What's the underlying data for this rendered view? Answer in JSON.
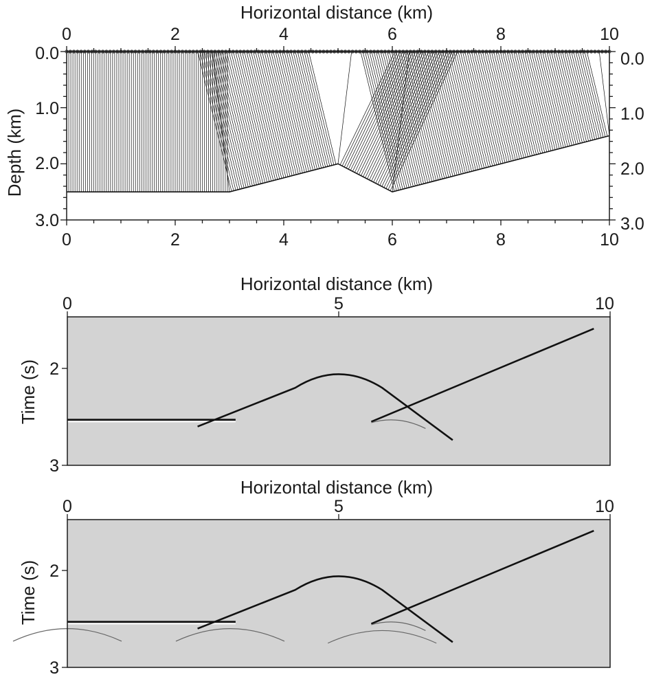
{
  "panels": {
    "depth_model": {
      "x_axis_title": "Horizontal distance (km)",
      "y_axis_title": "Depth (km)",
      "x_ticks": [
        "0",
        "2",
        "4",
        "6",
        "8",
        "10"
      ],
      "y_ticks_left": [
        "0.0",
        "1.0",
        "2.0",
        "3.0"
      ],
      "y_ticks_right": [
        "0.0",
        "1.0",
        "2.0",
        "3.0"
      ]
    },
    "zero_offset_section": {
      "x_axis_title": "Horizontal distance (km)",
      "y_axis_title": "Time (s)",
      "x_ticks": [
        "0",
        "5",
        "10"
      ],
      "y_ticks": [
        "2",
        "3"
      ]
    },
    "modeled_section": {
      "x_axis_title": "Horizontal distance (km)",
      "y_axis_title": "Time (s)",
      "x_ticks": [
        "0",
        "5",
        "10"
      ],
      "y_ticks": [
        "2",
        "3"
      ]
    }
  },
  "colors": {
    "background_section": "#d3d3d3",
    "ink": "#111111"
  },
  "reflector_depth_km": {
    "x": [
      0,
      3,
      5,
      6,
      10
    ],
    "z": [
      2.5,
      2.5,
      2.0,
      2.5,
      1.5
    ]
  },
  "events_time_s": {
    "flat": {
      "x": [
        0,
        3.1
      ],
      "t": [
        2.53,
        2.53
      ]
    },
    "dipping_left": {
      "x": [
        2.4,
        5.0
      ],
      "t": [
        2.6,
        2.08
      ]
    },
    "anticline_right": {
      "x": [
        5.0,
        7.1
      ],
      "t": [
        2.08,
        2.74
      ]
    },
    "dipping_right": {
      "x": [
        5.6,
        9.7
      ],
      "t": [
        2.55,
        1.59
      ]
    }
  }
}
